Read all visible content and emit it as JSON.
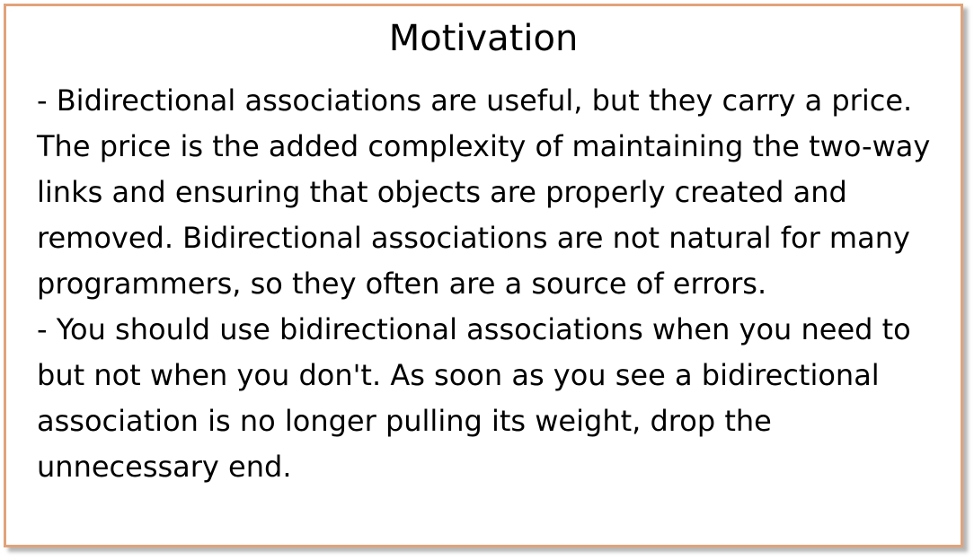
{
  "slide": {
    "title": "Motivation",
    "paragraphs": [
      "- Bidirectional associations are useful, but they carry a price. The price is the added complexity of maintaining the two-way links and ensuring that objects are properly created and removed. Bidirectional associations are not natural for many programmers, so they often are a source of errors.",
      "- You should use bidirectional associations when you need to but not when you don't. As soon as you see a bidirectional association is no longer pulling its weight, drop the unnecessary end."
    ]
  },
  "colors": {
    "border": "#e0a37a",
    "text": "#000000",
    "background": "#ffffff"
  }
}
